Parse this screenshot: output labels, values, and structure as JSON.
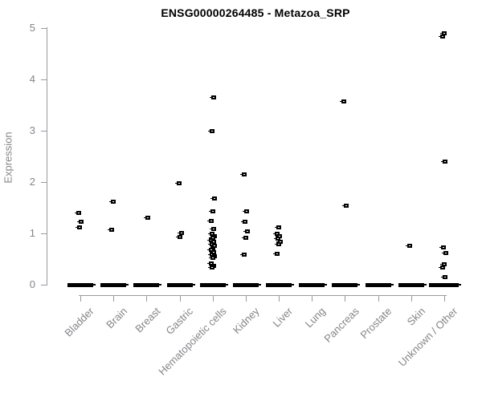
{
  "chart_data": {
    "type": "scatter",
    "title": "ENSG00000264485 - Metazoa_SRP",
    "xlabel": "",
    "ylabel": "Expression",
    "ylim": [
      0,
      5
    ],
    "yticks": [
      0,
      1,
      2,
      3,
      4,
      5
    ],
    "grid": false,
    "legend": null,
    "marker": "open-square",
    "point_color": "#000000",
    "axis_text_color": "#858589",
    "axis_line_color": "#9a9aa0",
    "title_color": "#000000",
    "categories": [
      "Bladder",
      "Brain",
      "Breast",
      "Gastric",
      "Hematopoietic cells",
      "Kidney",
      "Liver",
      "Lung",
      "Pancreas",
      "Prostate",
      "Skin",
      "Unknown / Other"
    ],
    "series": [
      {
        "name": "Bladder",
        "points": [
          1.41,
          1.23,
          1.13
        ],
        "zero_cluster": true
      },
      {
        "name": "Brain",
        "points": [
          1.63,
          1.08
        ],
        "zero_cluster": true
      },
      {
        "name": "Breast",
        "points": [
          1.31
        ],
        "zero_cluster": true
      },
      {
        "name": "Gastric",
        "points": [
          1.98,
          1.02,
          0.94
        ],
        "zero_cluster": true
      },
      {
        "name": "Hematopoietic cells",
        "points": [
          3.66,
          3.0,
          1.69,
          1.44,
          1.25,
          1.1,
          1.0,
          0.96,
          0.92,
          0.88,
          0.84,
          0.8,
          0.76,
          0.72,
          0.68,
          0.64,
          0.6,
          0.56,
          0.53,
          0.42,
          0.38,
          0.34
        ],
        "zero_cluster": true
      },
      {
        "name": "Kidney",
        "points": [
          2.15,
          1.43,
          1.24,
          1.05,
          0.92,
          0.59
        ],
        "zero_cluster": true
      },
      {
        "name": "Liver",
        "points": [
          1.12,
          1.0,
          0.95,
          0.9,
          0.85,
          0.8,
          0.61
        ],
        "zero_cluster": true
      },
      {
        "name": "Lung",
        "points": [],
        "zero_cluster": true
      },
      {
        "name": "Pancreas",
        "points": [
          3.58,
          1.55
        ],
        "zero_cluster": true
      },
      {
        "name": "Prostate",
        "points": [],
        "zero_cluster": true
      },
      {
        "name": "Skin",
        "points": [
          0.76
        ],
        "zero_cluster": true
      },
      {
        "name": "Unknown / Other",
        "points": [
          4.9,
          4.84,
          2.41,
          0.74,
          0.62,
          0.4,
          0.35,
          0.16
        ],
        "zero_cluster": true
      }
    ]
  }
}
